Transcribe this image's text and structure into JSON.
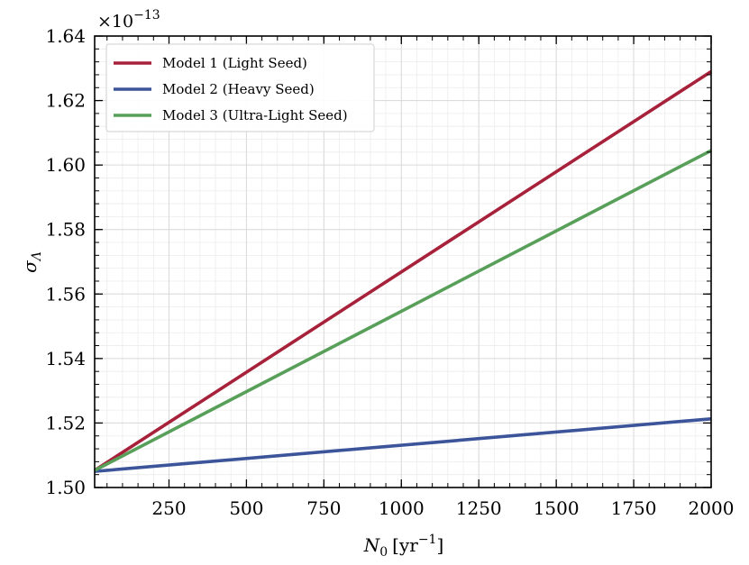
{
  "chart_data": {
    "type": "line",
    "title": "",
    "xlabel": "N₀ [yr⁻¹]",
    "xlabel_main": "N",
    "xlabel_sub": "0",
    "xlabel_unit_open": "[yr",
    "xlabel_unit_sup": "−1",
    "xlabel_unit_close": "]",
    "ylabel": "σΛ",
    "ylabel_main": "σ",
    "ylabel_sub": "Λ",
    "y_offset_text": "×10⁻¹³",
    "y_offset_base": "×10",
    "y_offset_exp": "−13",
    "xlim": [
      10,
      2000
    ],
    "ylim": [
      1.5,
      1.64
    ],
    "xticks": [
      250,
      500,
      750,
      1000,
      1250,
      1500,
      1750,
      2000
    ],
    "xtick_labels": [
      "250",
      "500",
      "750",
      "1000",
      "1250",
      "1500",
      "1750",
      "2000"
    ],
    "yticks": [
      1.5,
      1.52,
      1.54,
      1.56,
      1.58,
      1.6,
      1.62,
      1.64
    ],
    "ytick_labels": [
      "1.50",
      "1.52",
      "1.54",
      "1.56",
      "1.58",
      "1.60",
      "1.62",
      "1.64"
    ],
    "grid": true,
    "legend_position": "top-left",
    "series": [
      {
        "name": "Model 1 (Light Seed)",
        "color": "#a8213a",
        "x": [
          10,
          2000
        ],
        "y": [
          1.5053,
          1.629
        ]
      },
      {
        "name": "Model 2 (Heavy Seed)",
        "color": "#3c5499",
        "x": [
          10,
          2000
        ],
        "y": [
          1.505,
          1.5213
        ]
      },
      {
        "name": "Model 3 (Ultra-Light Seed)",
        "color": "#58a05a",
        "x": [
          10,
          2000
        ],
        "y": [
          1.5053,
          1.6045
        ]
      }
    ]
  }
}
